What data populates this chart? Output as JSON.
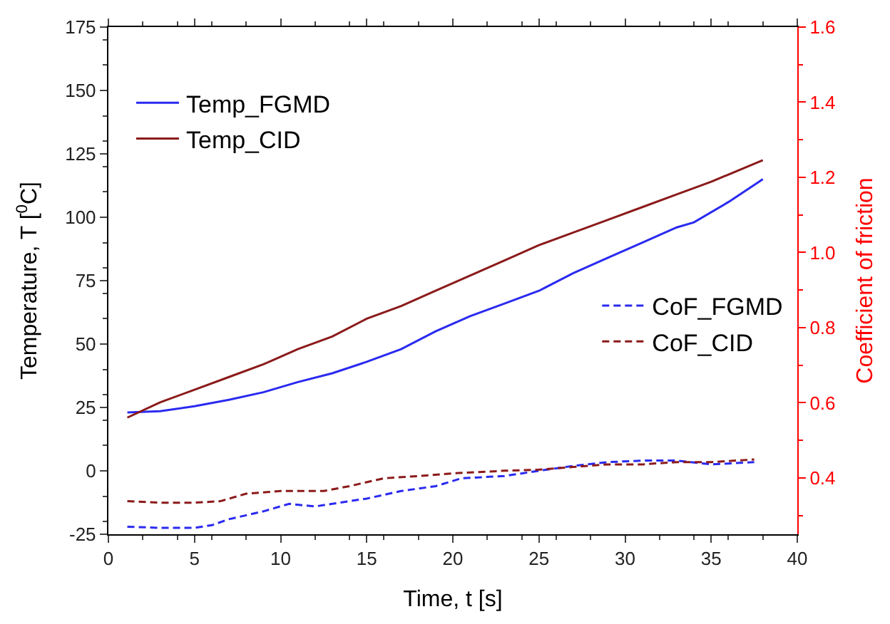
{
  "chart_data": {
    "type": "line",
    "xlabel": "Time, t [s]",
    "ylabel": "Temperature, T [$^{0}$C]",
    "y2label": "Coefficient of friction",
    "xlim": [
      0,
      40
    ],
    "xticks": [
      0,
      5,
      10,
      15,
      20,
      25,
      30,
      35,
      40
    ],
    "ylim": [
      -25,
      175
    ],
    "yticks": [
      -25,
      0,
      25,
      50,
      75,
      100,
      125,
      150,
      175
    ],
    "y2lim": [
      0.25,
      1.6
    ],
    "y2ticks": [
      0.4,
      0.6,
      0.8,
      {
        "value": 1,
        "label": "1.0"
      },
      1.2,
      1.4,
      1.6
    ],
    "legend": "top left",
    "series": [
      {
        "name": "Temp_FGMD",
        "color": "#2a2af0",
        "line_style": "solid",
        "x": [
          1.1,
          3,
          5,
          7,
          9,
          11,
          13,
          15,
          17,
          19,
          21,
          23,
          25,
          27,
          29,
          31,
          33,
          34,
          36,
          38
        ],
        "values": [
          23,
          23.5,
          25.5,
          28,
          31,
          35,
          38.5,
          43,
          48,
          55,
          61,
          66,
          71,
          78,
          84,
          90,
          96,
          98,
          106,
          115
        ]
      },
      {
        "name": "Temp_CID",
        "color": "#8b1a1a",
        "line_style": "solid",
        "x": [
          1.1,
          3,
          5,
          7,
          9,
          11,
          13,
          15,
          17,
          19,
          21,
          23,
          25,
          27,
          29,
          31,
          33,
          35,
          38
        ],
        "values": [
          21,
          27,
          32,
          37,
          42,
          48,
          53,
          60,
          65,
          71,
          77,
          83,
          89,
          94,
          99,
          104,
          109,
          114,
          122.5
        ]
      },
      {
        "name": "CoF_FGMD",
        "color": "#2a2af0",
        "line_style": "dashed",
        "axis": "y2",
        "x": [
          1.1,
          3,
          5,
          6,
          7,
          9,
          10.5,
          12,
          13,
          15,
          17,
          19,
          20.5,
          23,
          25,
          27,
          29,
          31,
          33,
          35,
          37.5
        ],
        "values": [
          0.27,
          0.267,
          0.267,
          0.274,
          0.29,
          0.311,
          0.331,
          0.324,
          0.331,
          0.345,
          0.365,
          0.378,
          0.399,
          0.405,
          0.419,
          0.432,
          0.442,
          0.446,
          0.446,
          0.436,
          0.442
        ]
      },
      {
        "name": "CoF_CID",
        "color": "#8b1a1a",
        "line_style": "dashed",
        "axis": "y2",
        "x": [
          1.1,
          3,
          5,
          6.5,
          8,
          10,
          12.5,
          14,
          16,
          18,
          20,
          23,
          25,
          27,
          29,
          31,
          33,
          35,
          37.5
        ],
        "values": [
          0.338,
          0.334,
          0.334,
          0.338,
          0.358,
          0.365,
          0.365,
          0.378,
          0.399,
          0.405,
          0.412,
          0.419,
          0.422,
          0.429,
          0.436,
          0.436,
          0.442,
          0.442,
          0.449
        ]
      }
    ]
  }
}
